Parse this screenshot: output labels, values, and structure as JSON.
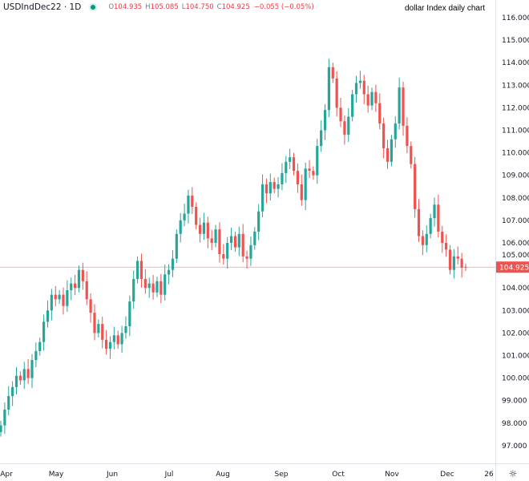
{
  "legend": {
    "symbol": "USDIndDec22 · 1D",
    "open_label": "O",
    "open": "104.935",
    "high_label": "H",
    "high": "105.085",
    "low_label": "L",
    "low": "104.750",
    "close_label": "C",
    "close": "104.925",
    "change": "−0.055 (−0.05%)"
  },
  "chart_title": "dollar Index daily chart",
  "settings_icon": "gear-icon",
  "colors": {
    "up": "#26a69a",
    "down": "#ef5350",
    "price_line": "#ef5350"
  },
  "chart_data": {
    "type": "candlestick",
    "title": "dollar Index daily chart",
    "ylim": [
      96.4,
      116.5
    ],
    "y_ticks": [
      "116.000",
      "115.000",
      "114.000",
      "113.000",
      "112.000",
      "111.000",
      "110.000",
      "109.000",
      "108.000",
      "107.000",
      "106.000",
      "105.000",
      "104.000",
      "103.000",
      "102.000",
      "101.000",
      "100.000",
      "99.000",
      "98.000",
      "97.000"
    ],
    "x_ticks": [
      "Apr",
      "May",
      "Jun",
      "Jul",
      "Aug",
      "Sep",
      "Oct",
      "Nov",
      "Dec",
      "26"
    ],
    "current_price": "104.925",
    "first_open": 97.6,
    "last_candle": {
      "open": 104.935,
      "high": 105.085,
      "low": 104.75,
      "close": 104.925
    },
    "closes": [
      97.9,
      98.6,
      99.2,
      99.6,
      100.1,
      99.9,
      100.4,
      100.0,
      100.8,
      101.2,
      101.6,
      102.5,
      103.0,
      103.7,
      103.5,
      103.7,
      103.2,
      103.9,
      104.2,
      104.0,
      104.8,
      104.3,
      103.5,
      102.9,
      102.0,
      102.4,
      101.7,
      101.3,
      101.6,
      101.9,
      101.5,
      102.0,
      102.3,
      103.4,
      104.4,
      105.2,
      104.4,
      104.0,
      104.2,
      103.8,
      104.3,
      103.7,
      104.6,
      104.8,
      105.3,
      106.4,
      107.0,
      107.3,
      108.1,
      107.6,
      106.8,
      106.4,
      106.9,
      106.2,
      106.0,
      106.6,
      105.5,
      105.3,
      106.0,
      106.3,
      105.8,
      106.4,
      105.4,
      105.3,
      105.9,
      106.5,
      107.4,
      108.6,
      108.2,
      108.7,
      108.4,
      108.6,
      109.1,
      109.6,
      109.8,
      109.2,
      108.6,
      107.9,
      109.3,
      109.2,
      109.0,
      110.3,
      111.0,
      111.9,
      113.8,
      113.3,
      112.0,
      111.4,
      110.8,
      111.6,
      112.6,
      113.1,
      113.2,
      112.6,
      112.1,
      112.7,
      112.2,
      111.3,
      110.2,
      109.6,
      110.6,
      111.3,
      112.9,
      111.2,
      110.3,
      109.5,
      107.5,
      106.3,
      105.9,
      106.4,
      107.1,
      107.7,
      106.5,
      106.0,
      105.7,
      104.8,
      105.4,
      105.3,
      104.9,
      104.925
    ]
  }
}
